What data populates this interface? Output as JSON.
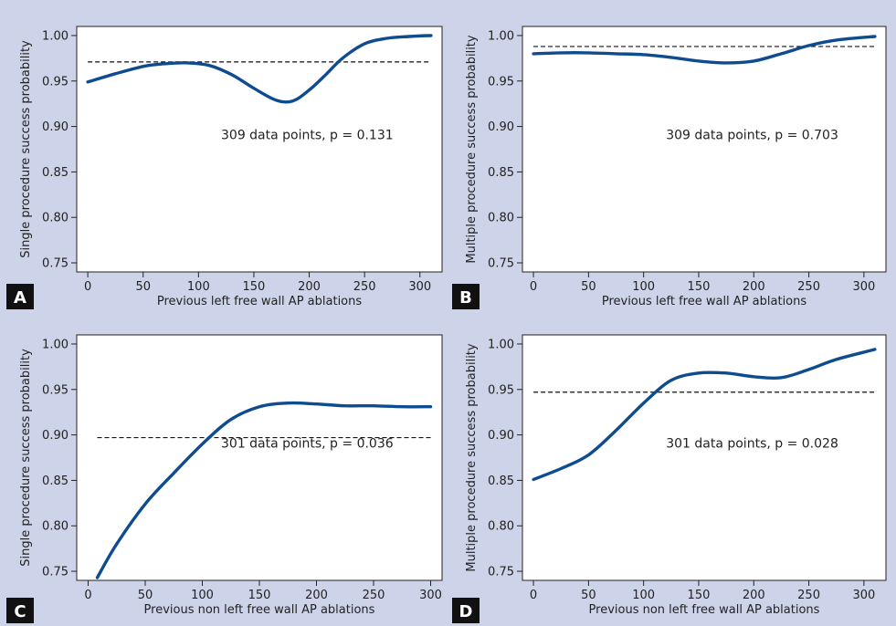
{
  "chart_data": [
    {
      "panel": "A",
      "type": "line",
      "xlabel": "Previous left free wall AP ablations",
      "ylabel": "Single procedure success probability",
      "xticks": [
        0,
        50,
        100,
        150,
        200,
        250,
        300
      ],
      "yticks": [
        0.75,
        0.8,
        0.85,
        0.9,
        0.95,
        1.0
      ],
      "xlim": [
        -10,
        320
      ],
      "ylim": [
        0.74,
        1.01
      ],
      "series": [
        {
          "x": [
            0,
            25,
            50,
            70,
            90,
            110,
            130,
            150,
            170,
            185,
            200,
            215,
            230,
            250,
            270,
            290,
            310
          ],
          "y": [
            0.949,
            0.958,
            0.966,
            0.969,
            0.97,
            0.967,
            0.957,
            0.942,
            0.929,
            0.928,
            0.94,
            0.957,
            0.975,
            0.991,
            0.997,
            0.999,
            1.0
          ]
        }
      ],
      "reference_line": 0.971,
      "annotation": "309 data points, p = 0.131"
    },
    {
      "panel": "B",
      "type": "line",
      "xlabel": "Previous left free wall AP ablations",
      "ylabel": "Multiple procedure success probability",
      "xticks": [
        0,
        50,
        100,
        150,
        200,
        250,
        300
      ],
      "yticks": [
        0.75,
        0.8,
        0.85,
        0.9,
        0.95,
        1.0
      ],
      "xlim": [
        -10,
        320
      ],
      "ylim": [
        0.74,
        1.01
      ],
      "series": [
        {
          "x": [
            0,
            25,
            50,
            75,
            100,
            125,
            150,
            175,
            200,
            225,
            250,
            275,
            310
          ],
          "y": [
            0.98,
            0.981,
            0.981,
            0.98,
            0.979,
            0.976,
            0.972,
            0.97,
            0.972,
            0.98,
            0.989,
            0.995,
            0.999
          ]
        }
      ],
      "reference_line": 0.988,
      "annotation": "309 data points, p = 0.703"
    },
    {
      "panel": "C",
      "type": "line",
      "xlabel": "Previous non left free wall AP ablations",
      "ylabel": "Single procedure success probability",
      "xticks": [
        0,
        50,
        100,
        150,
        200,
        250,
        300
      ],
      "yticks": [
        0.75,
        0.8,
        0.85,
        0.9,
        0.95,
        1.0
      ],
      "xlim": [
        -10,
        310
      ],
      "ylim": [
        0.74,
        1.01
      ],
      "series": [
        {
          "x": [
            8,
            25,
            50,
            75,
            100,
            125,
            150,
            175,
            200,
            225,
            250,
            275,
            300
          ],
          "y": [
            0.743,
            0.78,
            0.824,
            0.858,
            0.89,
            0.917,
            0.931,
            0.935,
            0.934,
            0.932,
            0.932,
            0.931,
            0.931
          ]
        }
      ],
      "reference_line": 0.897,
      "annotation": "301 data points, p = 0.036"
    },
    {
      "panel": "D",
      "type": "line",
      "xlabel": "Previous non left free wall AP ablations",
      "ylabel": "Multiple procedure success probability",
      "xticks": [
        0,
        50,
        100,
        150,
        200,
        250,
        300
      ],
      "yticks": [
        0.75,
        0.8,
        0.85,
        0.9,
        0.95,
        1.0
      ],
      "xlim": [
        -10,
        320
      ],
      "ylim": [
        0.74,
        1.01
      ],
      "series": [
        {
          "x": [
            0,
            25,
            50,
            75,
            100,
            125,
            150,
            175,
            200,
            225,
            250,
            275,
            310
          ],
          "y": [
            0.851,
            0.863,
            0.878,
            0.905,
            0.935,
            0.96,
            0.968,
            0.968,
            0.964,
            0.963,
            0.972,
            0.983,
            0.994
          ]
        }
      ],
      "reference_line": 0.947,
      "annotation": "301 data points, p = 0.028"
    }
  ],
  "colors": {
    "background": "#cdd3e8",
    "plot_background": "#ffffff",
    "line": "#0f4c8f",
    "reference": "#111111",
    "panel_badge": "#111111"
  }
}
